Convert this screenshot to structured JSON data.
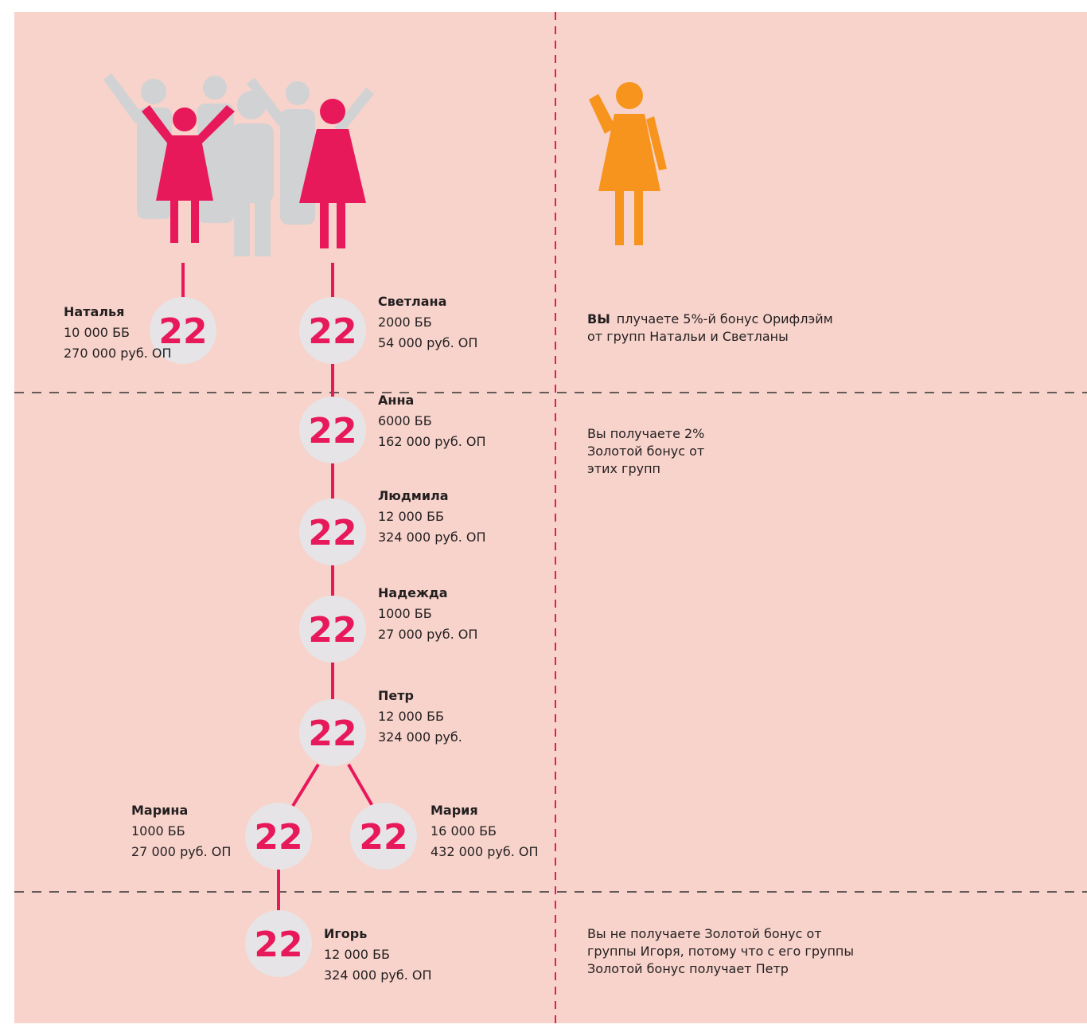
{
  "nodes": [
    {
      "label": "22",
      "name": "Наталья",
      "bb": "10 000 ББ",
      "op": "270 000 руб. ОП"
    },
    {
      "label": "22",
      "name": "Светлана",
      "bb": "2000 ББ",
      "op": "54 000 руб. ОП"
    },
    {
      "label": "22",
      "name": "Анна",
      "bb": "6000 ББ",
      "op": "162 000 руб. ОП"
    },
    {
      "label": "22",
      "name": "Людмила",
      "bb": "12 000 ББ",
      "op": "324 000 руб. ОП"
    },
    {
      "label": "22",
      "name": "Надежда",
      "bb": "1000 ББ",
      "op": "27 000 руб. ОП"
    },
    {
      "label": "22",
      "name": "Петр",
      "bb": "12 000 ББ",
      "op": "324 000 руб."
    },
    {
      "label": "22",
      "name": "Марина",
      "bb": "1000 ББ",
      "op": "27 000 руб. ОП"
    },
    {
      "label": "22",
      "name": "Мария",
      "bb": "16 000 ББ",
      "op": "432 000 руб. ОП"
    },
    {
      "label": "22",
      "name": "Игорь",
      "bb": "12 000 ББ",
      "op": "324 000 руб. ОП"
    }
  ],
  "notes": [
    {
      "bold": "ВЫ",
      "lines": [
        "плучаете 5%-й бонус Орифлэйм",
        "от групп Натальи и Светланы"
      ]
    },
    {
      "lines": [
        "Вы получаете 2%",
        "Золотой бонус от",
        "этих групп"
      ]
    },
    {
      "lines": [
        "Вы не получаете  Золотой бонус от",
        "группы Игоря, потому что с его группы",
        "Золотой бонус получает Петр"
      ]
    }
  ]
}
